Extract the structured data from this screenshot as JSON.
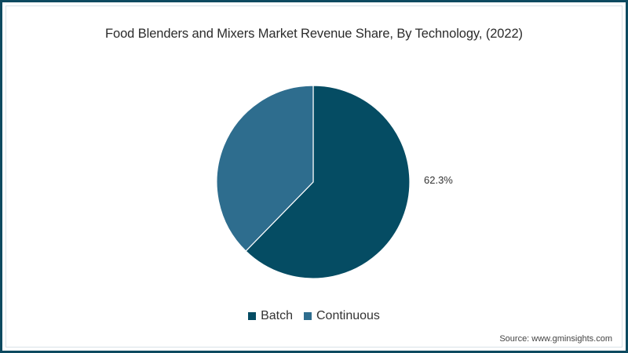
{
  "chart_data": {
    "type": "pie",
    "title": "Food Blenders and Mixers Market Revenue Share, By Technology, (2022)",
    "categories": [
      "Batch",
      "Continuous"
    ],
    "values": [
      62.3,
      37.7
    ],
    "colors": [
      "#054c63",
      "#2e6d8e"
    ],
    "data_labels": [
      "62.3%",
      ""
    ],
    "legend_position": "bottom",
    "start_angle_deg": 0,
    "direction": "clockwise"
  },
  "title": "Food Blenders and Mixers Market Revenue Share, By Technology, (2022)",
  "labels": {
    "batch_pct": "62.3%"
  },
  "legend": [
    {
      "label": "Batch",
      "color": "#054c63"
    },
    {
      "label": "Continuous",
      "color": "#2e6d8e"
    }
  ],
  "source": "Source: www.gminsights.com",
  "colors": {
    "border": "#0d4a60"
  }
}
